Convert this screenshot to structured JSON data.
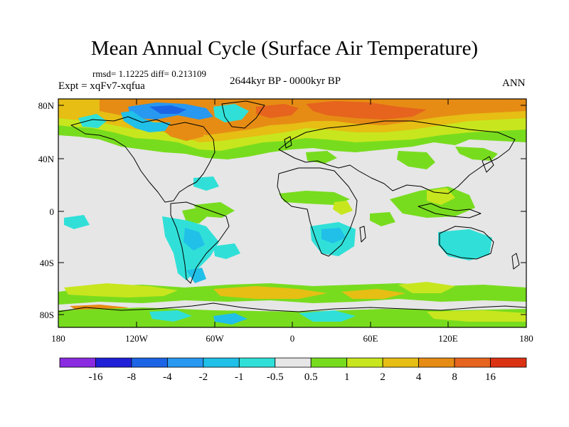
{
  "map": {
    "title": "Mean Annual Cycle (Surface Air Temperature)",
    "stats": "rmsd= 1.12225 diff= 0.213109",
    "period": "2644kyr BP - 0000kyr BP",
    "experiment": "Expt = xqFv7-xqfua",
    "season": "ANN",
    "lat_ticks": [
      "80N",
      "40N",
      "0",
      "40S",
      "80S"
    ],
    "lon_ticks": [
      "180",
      "120W",
      "60W",
      "0",
      "60E",
      "120E",
      "180"
    ]
  },
  "colorbar": {
    "labels": [
      "-16",
      "-8",
      "-4",
      "-2",
      "-1",
      "-0.5",
      "0.5",
      "1",
      "2",
      "4",
      "8",
      "16"
    ],
    "colors": [
      "#8a2be2",
      "#2020d8",
      "#1c64e6",
      "#2898f0",
      "#20c0e8",
      "#30e0d8",
      "#e6e6e6",
      "#78dc1e",
      "#c8e61e",
      "#e6be14",
      "#e68c14",
      "#e6641e",
      "#dc3214"
    ]
  },
  "palette": {
    "neutral": "#e6e6e6",
    "coast": "#000000"
  }
}
